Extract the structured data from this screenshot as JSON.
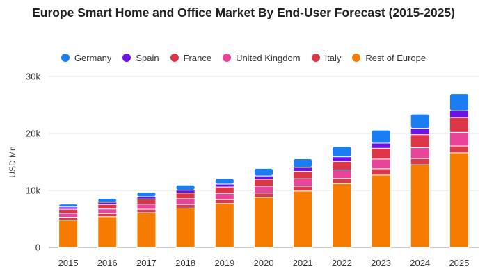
{
  "chart_data": {
    "type": "bar",
    "stacked": true,
    "title": "Europe Smart Home and Office Market By End-User Forecast (2015-2025)",
    "ylabel": "USD Mn",
    "xlabel": "",
    "ylim": [
      0,
      30000
    ],
    "yticks": [
      0,
      10000,
      20000,
      30000
    ],
    "ytick_labels": [
      "0",
      "10k",
      "20k",
      "30k"
    ],
    "grid": true,
    "legend_position": "top",
    "categories": [
      "2015",
      "2016",
      "2017",
      "2018",
      "2019",
      "2020",
      "2021",
      "2022",
      "2023",
      "2024",
      "2025"
    ],
    "series": [
      {
        "name": "Rest of Europe",
        "color": "#f57c00",
        "values": [
          4800,
          5400,
          6100,
          6900,
          7700,
          8800,
          9900,
          11200,
          12700,
          14500,
          16600
        ]
      },
      {
        "name": "Italy",
        "color": "#d93a4a",
        "values": [
          500,
          550,
          600,
          650,
          700,
          750,
          850,
          900,
          1100,
          1100,
          1200
        ]
      },
      {
        "name": "United Kingdom",
        "color": "#e8449a",
        "values": [
          700,
          800,
          900,
          1000,
          1100,
          1200,
          1300,
          1500,
          1700,
          1900,
          2400
        ]
      },
      {
        "name": "France",
        "color": "#dc3545",
        "values": [
          700,
          800,
          900,
          1000,
          1100,
          1200,
          1300,
          1500,
          1900,
          2300,
          2600
        ]
      },
      {
        "name": "Spain",
        "color": "#6c12e6",
        "values": [
          400,
          400,
          400,
          500,
          500,
          600,
          700,
          800,
          900,
          1100,
          1200
        ]
      },
      {
        "name": "Germany",
        "color": "#1a7ef2",
        "values": [
          500,
          650,
          800,
          900,
          1000,
          1300,
          1500,
          1800,
          2300,
          2500,
          3000
        ]
      }
    ],
    "legend_order": [
      "Germany",
      "Spain",
      "France",
      "United Kingdom",
      "Italy",
      "Rest of Europe"
    ]
  }
}
